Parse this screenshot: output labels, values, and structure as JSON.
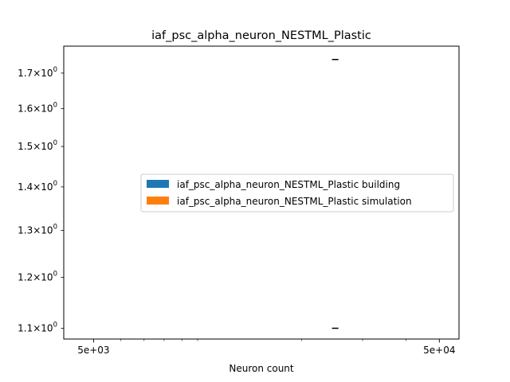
{
  "chart_data": {
    "type": "bar",
    "title": "iaf_psc_alpha_neuron_NESTML_Plastic",
    "xlabel": "Neuron count",
    "ylabel": "",
    "x_scale": "log",
    "y_scale": "log",
    "xlim": [
      4100,
      57000
    ],
    "ylim": [
      1.08,
      1.78
    ],
    "x_ticks": [
      {
        "value": 5000,
        "label": "5e+03"
      },
      {
        "value": 50000,
        "label": "5e+04"
      }
    ],
    "y_ticks": [
      {
        "value": 1.1,
        "mantissa": "1.1",
        "exp": "0"
      },
      {
        "value": 1.2,
        "mantissa": "1.2",
        "exp": "0"
      },
      {
        "value": 1.3,
        "mantissa": "1.3",
        "exp": "0"
      },
      {
        "value": 1.4,
        "mantissa": "1.4",
        "exp": "0"
      },
      {
        "value": 1.5,
        "mantissa": "1.5",
        "exp": "0"
      },
      {
        "value": 1.6,
        "mantissa": "1.6",
        "exp": "0"
      },
      {
        "value": 1.7,
        "mantissa": "1.7",
        "exp": "0"
      }
    ],
    "times_symbol": "×",
    "tick_base": "10",
    "error_marks": [
      {
        "x": 25000,
        "y": 1.1
      },
      {
        "x": 25000,
        "y": 1.74
      }
    ],
    "series": [
      {
        "name": "iaf_psc_alpha_neuron_NESTML_Plastic building",
        "color": "#1f77b4"
      },
      {
        "name": "iaf_psc_alpha_neuron_NESTML_Plastic simulation",
        "color": "#ff7f0e"
      }
    ],
    "legend_position": "center-right",
    "grid": false
  }
}
